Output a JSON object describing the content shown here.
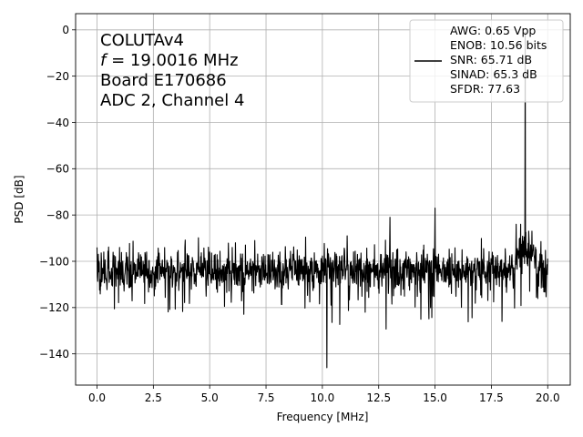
{
  "chart_data": {
    "type": "line",
    "xlabel": "Frequency [MHz]",
    "ylabel": "PSD [dB]",
    "xlim": [
      -0.95,
      21.0
    ],
    "ylim": [
      -153.5,
      7.0
    ],
    "grid": true,
    "x_ticks": [
      0.0,
      2.5,
      5.0,
      7.5,
      10.0,
      12.5,
      15.0,
      17.5,
      20.0
    ],
    "x_tick_labels": [
      "0.0",
      "2.5",
      "5.0",
      "7.5",
      "10.0",
      "12.5",
      "15.0",
      "17.5",
      "20.0"
    ],
    "y_ticks": [
      0,
      -20,
      -40,
      -60,
      -80,
      -100,
      -120,
      -140
    ],
    "y_tick_labels": [
      "0",
      "−20",
      "−40",
      "−60",
      "−80",
      "−100",
      "−120",
      "−140"
    ],
    "annotation_lines": [
      "COLUTAv4",
      "= 19.0016 MHz",
      "Board E170686",
      "ADC 2, Channel 4"
    ],
    "annotation_f_symbol": "f",
    "legend_position": "top-right",
    "legend_lines": [
      "AWG: 0.65 Vpp",
      "ENOB: 10.56 bits",
      "SNR: 65.71 dB",
      "SINAD: 65.3 dB",
      "SFDR: 77.63"
    ],
    "series": [
      {
        "color": "#000000",
        "noise_floor_db": -104,
        "x_range": [
          0.0,
          20.0
        ],
        "spurs": [
          {
            "x": 0.0,
            "y": -94
          },
          {
            "x": 0.3,
            "y": -96
          },
          {
            "x": 1.0,
            "y": -94
          },
          {
            "x": 2.2,
            "y": -96
          },
          {
            "x": 3.9,
            "y": -94
          },
          {
            "x": 5.0,
            "y": -96
          },
          {
            "x": 6.0,
            "y": -94
          },
          {
            "x": 7.0,
            "y": -91
          },
          {
            "x": 10.2,
            "y": -146
          },
          {
            "x": 11.1,
            "y": -89
          },
          {
            "x": 13.0,
            "y": -81
          },
          {
            "x": 13.3,
            "y": -95
          },
          {
            "x": 15.0,
            "y": -77
          },
          {
            "x": 16.2,
            "y": -95
          },
          {
            "x": 18.6,
            "y": -84
          },
          {
            "x": 18.8,
            "y": -84
          },
          {
            "x": 19.0,
            "y": -134
          },
          {
            "x": 19.0016,
            "y": -1
          },
          {
            "x": 19.3,
            "y": -87
          }
        ]
      }
    ]
  }
}
